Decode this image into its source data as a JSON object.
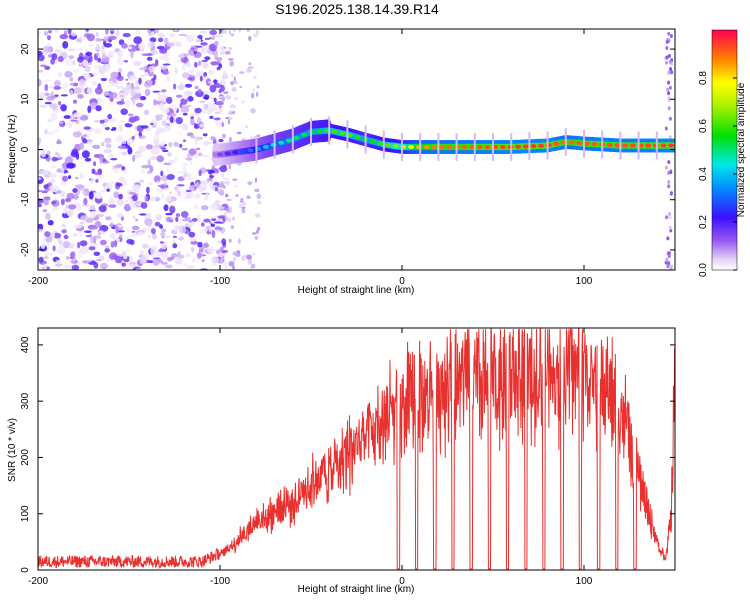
{
  "title": "S196.2025.138.14.39.R14",
  "chart_data": [
    {
      "type": "heatmap",
      "xlabel": "Height of straight line (km)",
      "ylabel": "Frequency (Hz)",
      "xlim": [
        -200,
        150
      ],
      "ylim": [
        -24,
        24
      ],
      "xticks": [
        -200,
        -100,
        0,
        100
      ],
      "yticks": [
        -20,
        -10,
        0,
        10,
        20
      ],
      "colorbar": {
        "label": "Normalized spectral amplitude",
        "range": [
          0,
          1
        ],
        "ticks": [
          "0.0",
          "0.2",
          "0.4",
          "0.6",
          "0.8"
        ]
      },
      "ridge": {
        "x": [
          -100,
          -90,
          -80,
          -70,
          -60,
          -50,
          -40,
          -30,
          -20,
          -10,
          0,
          10,
          20,
          40,
          60,
          80,
          90,
          100,
          120,
          150
        ],
        "frequency": [
          -1,
          -0.5,
          0,
          1,
          2,
          3.5,
          3.8,
          3,
          2,
          1,
          0.5,
          0.5,
          0.5,
          0.5,
          0.5,
          0.8,
          1.5,
          1.2,
          0.8,
          0.8
        ],
        "amplitude": [
          0.15,
          0.25,
          0.35,
          0.45,
          0.5,
          0.55,
          0.6,
          0.62,
          0.55,
          0.6,
          0.7,
          0.85,
          0.9,
          0.92,
          0.95,
          0.95,
          0.9,
          0.92,
          0.93,
          0.95
        ]
      },
      "noise_region": [
        -200,
        -100
      ]
    },
    {
      "type": "line",
      "xlabel": "Height of straight line (km)",
      "ylabel": "SNR (10 * v/v)",
      "xlim": [
        -200,
        150
      ],
      "ylim": [
        0,
        430
      ],
      "xticks": [
        -200,
        -100,
        0,
        100
      ],
      "yticks": [
        0,
        100,
        200,
        300,
        400
      ],
      "color": "#e8302e",
      "series": [
        {
          "name": "SNR",
          "x": [
            -200,
            -150,
            -110,
            -100,
            -95,
            -90,
            -85,
            -80,
            -75,
            -70,
            -65,
            -60,
            -55,
            -50,
            -45,
            -40,
            -35,
            -30,
            -25,
            -20,
            -15,
            -10,
            -5,
            0,
            5,
            10,
            15,
            20,
            25,
            30,
            40,
            50,
            60,
            70,
            80,
            90,
            100,
            110,
            120,
            125,
            130,
            135,
            140,
            145,
            148,
            150
          ],
          "values": [
            15,
            15,
            15,
            30,
            45,
            60,
            80,
            100,
            110,
            120,
            130,
            140,
            160,
            175,
            190,
            200,
            220,
            235,
            255,
            270,
            285,
            300,
            310,
            320,
            345,
            360,
            365,
            370,
            375,
            380,
            380,
            380,
            385,
            395,
            400,
            395,
            385,
            380,
            330,
            260,
            190,
            120,
            60,
            20,
            120,
            390
          ]
        }
      ],
      "dropouts_x": [
        -2,
        8,
        18,
        28,
        38,
        48,
        58,
        68,
        78,
        88,
        98,
        108,
        118,
        128
      ]
    }
  ]
}
